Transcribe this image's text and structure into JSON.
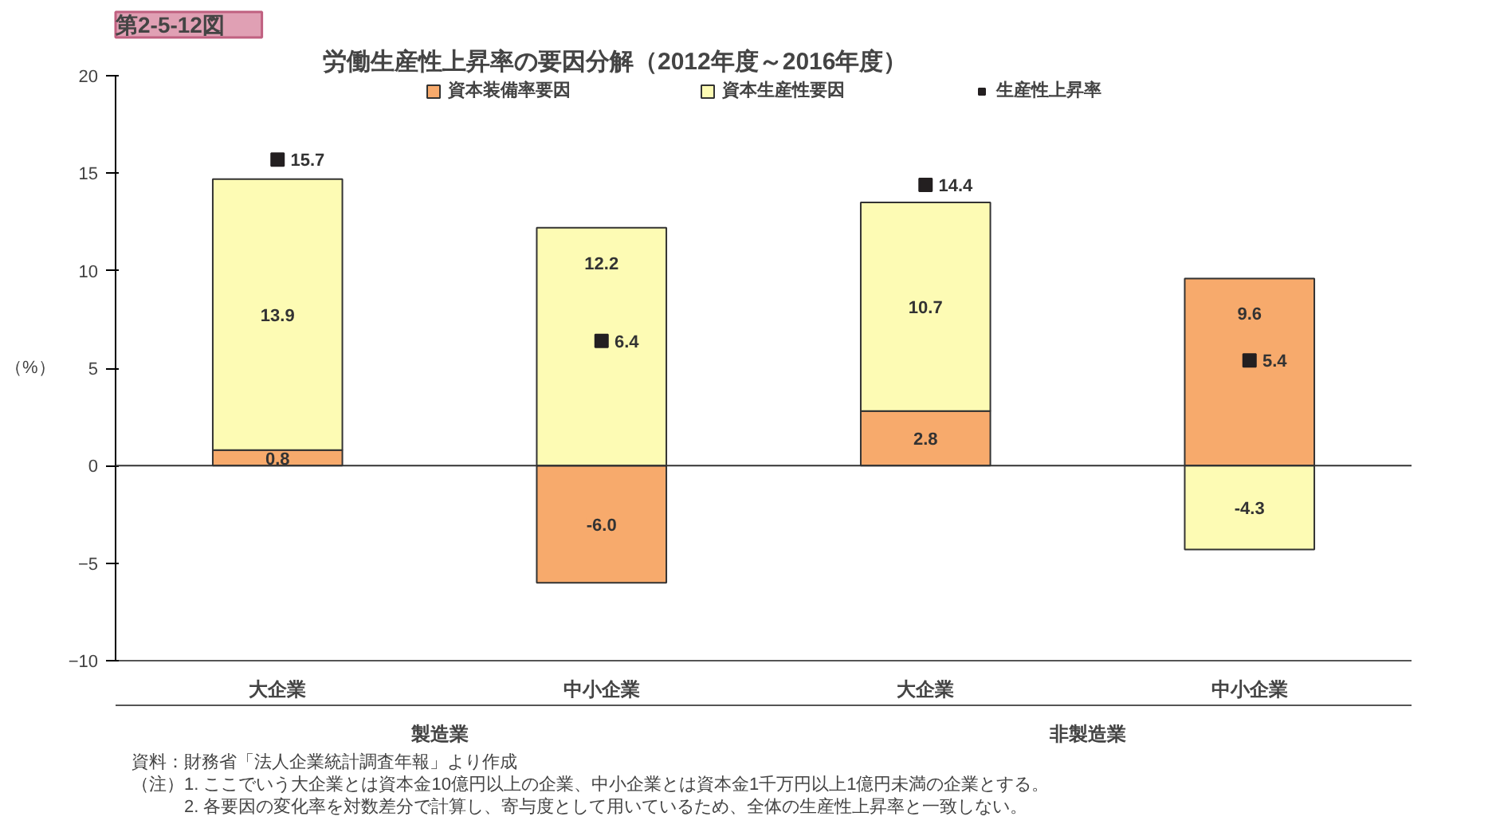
{
  "chart_data": {
    "type": "bar",
    "stacked": true,
    "subtitle": "第2-5-12図",
    "title": "労働生産性上昇率の要因分解（2012年度～2016年度）",
    "ylabel": "（%）",
    "categories": [
      "大企業",
      "中小企業",
      "大企業",
      "中小企業"
    ],
    "series": [
      {
        "name": "資本装備率要因",
        "color": "#f7aa6c",
        "values": [
          0.8,
          -6.0,
          2.8,
          9.6
        ],
        "value_labels": [
          "0.8",
          "-6.0",
          "2.8",
          "9.6"
        ]
      },
      {
        "name": "資本生産性要因",
        "color": "#fdfbb4",
        "values": [
          13.9,
          12.2,
          10.7,
          -4.3
        ],
        "value_labels": [
          "13.9",
          "12.2",
          "10.7",
          "-4.3"
        ]
      },
      {
        "name": "生産性上昇率",
        "type": "scatter",
        "marker": "square",
        "color": "#231f20",
        "values": [
          15.7,
          6.4,
          14.4,
          5.4
        ],
        "value_labels": [
          "15.7",
          "6.4",
          "14.4",
          "5.4"
        ]
      }
    ],
    "ylim": [
      -10,
      20
    ],
    "yticks": [
      -10,
      -5,
      0,
      5,
      10,
      15,
      20
    ],
    "legend": "top",
    "data_labels": true,
    "annotations": [
      "製造業",
      "非製造業",
      "資料：財務省「法人企業統計調査年報」より作成",
      "（注）1. ここでいう大企業とは資本金10億円以上の企業、中小企業とは資本金1千万円以上1億円未満の企業とする。",
      "　　　2. 各要因の変化率を対数差分で計算し、寄与度として用いているため、全体の生産性上昇率と一致しない。"
    ]
  }
}
